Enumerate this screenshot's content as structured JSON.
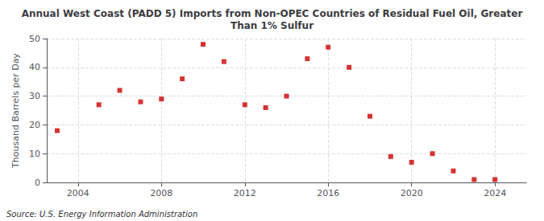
{
  "chart_data": {
    "type": "scatter",
    "title": "Annual West Coast (PADD 5) Imports from Non-OPEC Countries of Residual Fuel Oil, Greater\nThan 1% Sulfur",
    "ylabel": "Thousand Barrels per Day",
    "annotations": [
      "Source: U.S. Energy Information Administration"
    ],
    "x": [
      2003,
      2005,
      2006,
      2007,
      2008,
      2009,
      2010,
      2011,
      2012,
      2013,
      2014,
      2015,
      2016,
      2017,
      2018,
      2019,
      2020,
      2021,
      2022,
      2023,
      2024
    ],
    "values": [
      18,
      27,
      32,
      28,
      29,
      36,
      48,
      42,
      27,
      26,
      30,
      43,
      47,
      40,
      23,
      9,
      7,
      10,
      4,
      1,
      1
    ],
    "color": "#cc0000",
    "marker": "square",
    "xlim": [
      2002.5,
      2025.5
    ],
    "ylim": [
      0,
      50
    ],
    "xticks": [
      2004,
      2008,
      2012,
      2016,
      2020,
      2024
    ],
    "yticks": [
      0,
      10,
      20,
      30,
      40,
      50
    ],
    "grid": true
  }
}
